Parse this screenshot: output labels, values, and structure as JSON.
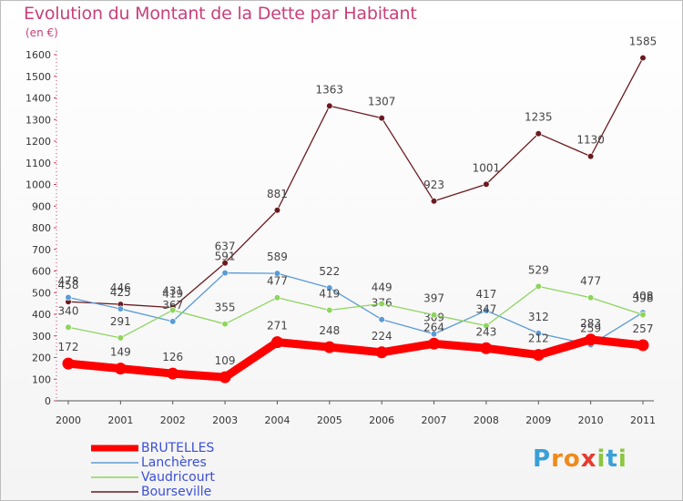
{
  "title": "Evolution du Montant de la Dette par Habitant",
  "subtitle": "(en €)",
  "logo": {
    "letters": [
      "P",
      "r",
      "o",
      "x",
      "i",
      "t",
      "i"
    ],
    "colors": [
      "#3aa0d8",
      "#f08a1c",
      "#f08a1c",
      "#e63b2e",
      "#8cc63e",
      "#3aa0d8",
      "#8cc63e"
    ]
  },
  "chart_data": {
    "type": "line",
    "categories": [
      "2000",
      "2001",
      "2002",
      "2003",
      "2004",
      "2005",
      "2006",
      "2007",
      "2008",
      "2009",
      "2010",
      "2011"
    ],
    "ylim": [
      0,
      1600
    ],
    "yticks": [
      0,
      100,
      200,
      300,
      400,
      500,
      600,
      700,
      800,
      900,
      1000,
      1100,
      1200,
      1300,
      1400,
      1500,
      1600
    ],
    "grid": false,
    "legend_position": "bottom-left",
    "series": [
      {
        "name": "Bourseville",
        "color": "#6b1a1f",
        "values": [
          458,
          446,
          431,
          637,
          881,
          1363,
          1307,
          923,
          1001,
          1235,
          1130,
          1585
        ]
      },
      {
        "name": "Lanchères",
        "color": "#5b9bd5",
        "values": [
          478,
          425,
          367,
          591,
          589,
          522,
          376,
          309,
          417,
          312,
          259,
          408
        ]
      },
      {
        "name": "Vaudricourt",
        "color": "#8ed45e",
        "values": [
          340,
          291,
          419,
          355,
          477,
          419,
          449,
          397,
          347,
          529,
          477,
          398
        ]
      },
      {
        "name": "BRUTELLES",
        "color": "#ff0000",
        "values": [
          172,
          149,
          126,
          109,
          271,
          248,
          224,
          264,
          243,
          212,
          283,
          257
        ]
      }
    ],
    "legend_order": [
      "BRUTELLES",
      "Lanchères",
      "Vaudricourt",
      "Bourseville"
    ]
  }
}
